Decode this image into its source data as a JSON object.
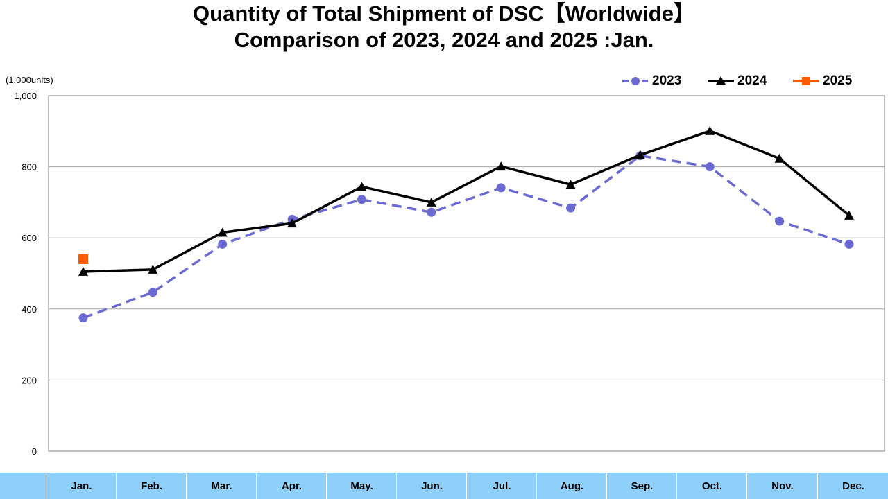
{
  "title_line1": "Quantity of Total Shipment of DSC【Worldwide】",
  "title_line2": "Comparison of 2023, 2024 and 2025 :Jan.",
  "chart_data": {
    "type": "line",
    "title": "Quantity of Total Shipment of DSC【Worldwide】 Comparison of 2023, 2024 and 2025 :Jan.",
    "ylabel": "(1,000units)",
    "xlabel": "",
    "ylim": [
      0,
      1000
    ],
    "yticks": [
      "0",
      "200",
      "400",
      "600",
      "800",
      "1,000"
    ],
    "ytick_values": [
      0,
      200,
      400,
      600,
      800,
      1000
    ],
    "grid": true,
    "legend_position": "top-right",
    "categories": [
      "Jan.",
      "Feb.",
      "Mar.",
      "Apr.",
      "May.",
      "Jun.",
      "Jul.",
      "Aug.",
      "Sep.",
      "Oct.",
      "Nov.",
      "Dec."
    ],
    "series": [
      {
        "name": "2023",
        "color": "#6a6ad2",
        "style": "dashed",
        "marker": "circle",
        "values": [
          375,
          447,
          582,
          652,
          708,
          672,
          741,
          684,
          831,
          800,
          647,
          582
        ]
      },
      {
        "name": "2024",
        "color": "#000000",
        "style": "solid",
        "marker": "triangle",
        "values": [
          505,
          511,
          615,
          641,
          744,
          700,
          801,
          750,
          833,
          901,
          823,
          663
        ]
      },
      {
        "name": "2025",
        "color": "#ff5a00",
        "style": "solid",
        "marker": "square",
        "values": [
          540,
          null,
          null,
          null,
          null,
          null,
          null,
          null,
          null,
          null,
          null,
          null
        ]
      }
    ]
  }
}
